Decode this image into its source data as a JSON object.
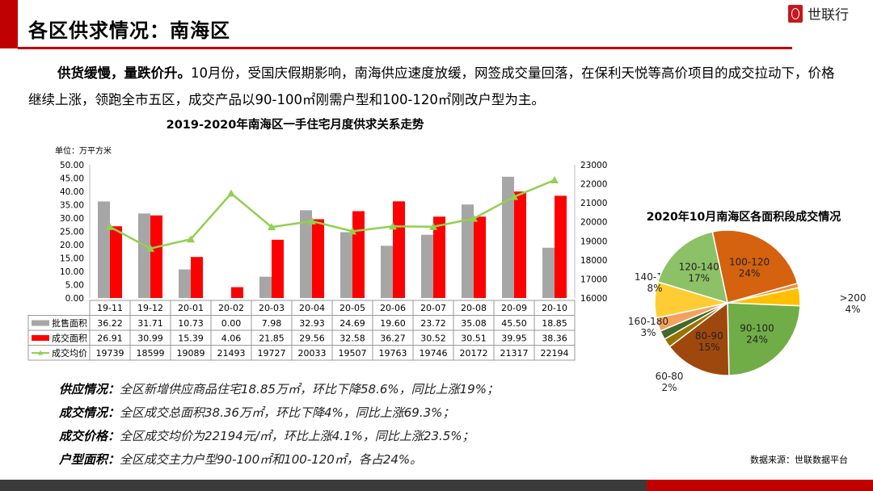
{
  "header": {
    "title": "各区供求情况：南海区",
    "logo_text": "世联行"
  },
  "intro": {
    "bold": "供货缓慢，量跌价升。",
    "text": "10月份，受国庆假期影响，南海供应速度放缓，网签成交量回落，在保利天悦等高价项目的成交拉动下，价格继续上涨，领跑全市五区，成交产品以90-100㎡刚需户型和100-120㎡刚改户型为主。"
  },
  "chart_data": [
    {
      "type": "bar",
      "title": "2019-2020年南海区一手住宅月度供求关系走势",
      "unit_label": "单位：万平方米",
      "categories": [
        "19-11",
        "19-12",
        "20-01",
        "20-02",
        "20-03",
        "20-04",
        "20-05",
        "20-06",
        "20-07",
        "20-08",
        "20-09",
        "20-10"
      ],
      "series": [
        {
          "name": "批售面积",
          "kind": "bar",
          "color": "#A6A6A6",
          "axis": "left",
          "values": [
            36.22,
            31.71,
            10.73,
            0.0,
            7.98,
            32.93,
            24.69,
            19.6,
            23.72,
            35.08,
            45.5,
            18.85
          ]
        },
        {
          "name": "成交面积",
          "kind": "bar",
          "color": "#FF0000",
          "axis": "left",
          "values": [
            26.91,
            30.99,
            15.39,
            4.06,
            21.85,
            29.56,
            32.58,
            36.27,
            30.52,
            30.51,
            39.95,
            38.36
          ]
        },
        {
          "name": "成交均价",
          "kind": "line",
          "color": "#92D050",
          "axis": "right",
          "values": [
            19739,
            18599,
            19089,
            21493,
            19727,
            20033,
            19507,
            19763,
            19746,
            20172,
            21317,
            22194
          ]
        }
      ],
      "y_left": {
        "min": 0,
        "max": 50,
        "ticks": [
          "0.00",
          "5.00",
          "10.00",
          "15.00",
          "20.00",
          "25.00",
          "30.00",
          "35.00",
          "40.00",
          "45.00",
          "50.00"
        ]
      },
      "y_right": {
        "min": 16000,
        "max": 23000,
        "ticks": [
          "16000",
          "17000",
          "18000",
          "19000",
          "20000",
          "21000",
          "22000",
          "23000"
        ]
      },
      "grid": false,
      "legend": "data-table"
    },
    {
      "type": "pie",
      "title": "2020年10月南海区各面积段成交情况",
      "slices": [
        {
          "label": "100-120",
          "pct": "24%",
          "value": 24,
          "color": "#D4620F",
          "inside": true
        },
        {
          "label": "",
          "pct": "",
          "value": 1,
          "color": "#EE8E3E"
        },
        {
          "label": ">200",
          "pct": "4%",
          "value": 4,
          "color": "#FFC000"
        },
        {
          "label": "90-100",
          "pct": "24%",
          "value": 24,
          "color": "#70AD47",
          "inside": true
        },
        {
          "label": "80-90",
          "pct": "15%",
          "value": 15,
          "color": "#9E480E",
          "inside": true
        },
        {
          "label": "60-80",
          "pct": "2%",
          "value": 2,
          "color": "#997300"
        },
        {
          "label": "",
          "pct": "",
          "value": 2,
          "color": "#43682B"
        },
        {
          "label": "160-180",
          "pct": "3%",
          "value": 3,
          "color": "#F4A160"
        },
        {
          "label": "140-160",
          "pct": "8%",
          "value": 8,
          "color": "#FFCD33"
        },
        {
          "label": "120-140",
          "pct": "17%",
          "value": 17,
          "color": "#8CC168",
          "inside": true
        }
      ]
    }
  ],
  "notes": [
    {
      "label": "供应情况：",
      "text": "全区新增供应商品住宅18.85万㎡，环比下降58.6%，同比上涨19%；"
    },
    {
      "label": "成交情况：",
      "text": "全区成交总面积38.36万㎡，环比下降4%，同比上涨69.3%；"
    },
    {
      "label": "成交价格：",
      "text": "全区成交均价为22194元/㎡，环比上涨4.1%，同比上涨23.5%；"
    },
    {
      "label": "户型面积：",
      "text": "全区成交主力户型90-100㎡和100-120㎡，各占24%。"
    }
  ],
  "source": "数据来源：世联数据平台"
}
